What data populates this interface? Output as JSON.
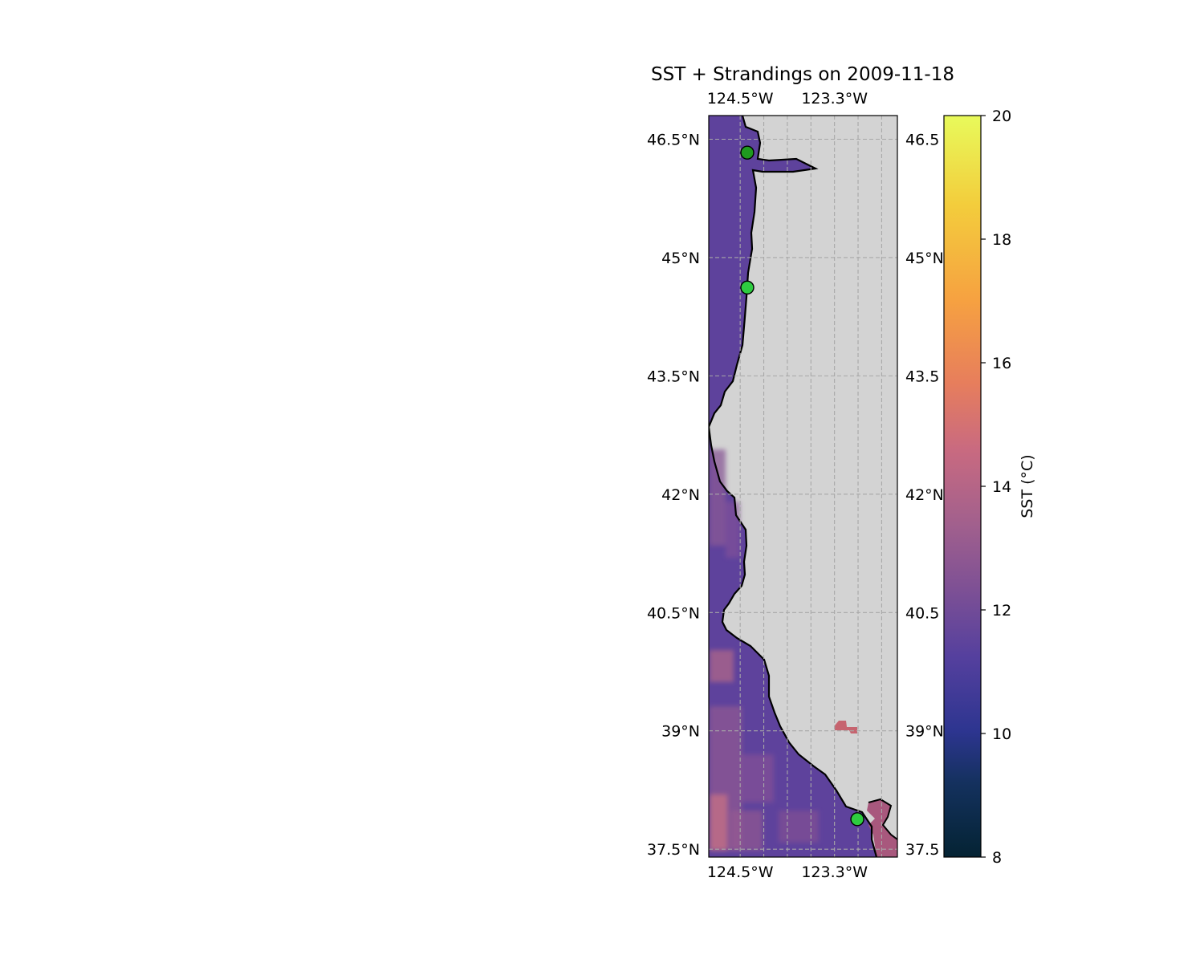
{
  "title": "SST + Strandings on 2009-11-18",
  "map": {
    "lon_range": [
      -124.9,
      -122.5
    ],
    "lat_range": [
      37.4,
      46.8
    ],
    "lon_ticks": [
      {
        "value": -124.5,
        "label": "124.5°W"
      },
      {
        "value": -123.3,
        "label": "123.3°W"
      }
    ],
    "lat_ticks": [
      {
        "value": 46.5,
        "label": "46.5°N",
        "right_label": "46.5"
      },
      {
        "value": 45.0,
        "label": "45°N",
        "right_label": "45°N"
      },
      {
        "value": 43.5,
        "label": "43.5°N",
        "right_label": "43.5"
      },
      {
        "value": 42.0,
        "label": "42°N",
        "right_label": "42°N"
      },
      {
        "value": 40.5,
        "label": "40.5°N",
        "right_label": "40.5"
      },
      {
        "value": 39.0,
        "label": "39°N",
        "right_label": "39°N"
      },
      {
        "value": 37.5,
        "label": "37.5°N",
        "right_label": "37.5"
      }
    ],
    "gridline_lons": [
      -124.5,
      -124.2,
      -123.9,
      -123.6,
      -123.3,
      -123.0,
      -122.7
    ],
    "land_color": "#d3d3d3",
    "gridlines": true
  },
  "strandings": [
    {
      "lon": -124.41,
      "lat": 46.33,
      "color": "#1f9a1f"
    },
    {
      "lon": -124.41,
      "lat": 44.62,
      "color": "#2ecc40"
    },
    {
      "lon": -123.01,
      "lat": 37.88,
      "color": "#2ecc40"
    }
  ],
  "colorbar": {
    "label": "SST (°C)",
    "vmin": 8,
    "vmax": 20,
    "ticks": [
      "8",
      "10",
      "12",
      "14",
      "16",
      "18",
      "20"
    ],
    "colormap": "thermal"
  }
}
